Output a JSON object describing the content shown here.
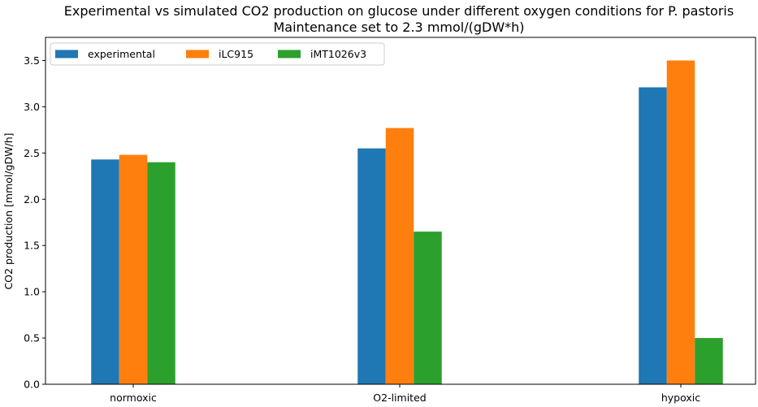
{
  "chart_data": {
    "type": "bar",
    "title": "Experimental vs simulated CO2 production on glucose under different oxygen conditions for P. pastoris",
    "subtitle": "Maintenance set to 2.3 mmol/(gDW*h)",
    "xlabel": "",
    "ylabel": "CO2 production [mmol/gDW/h]",
    "ylim": [
      0,
      3.75
    ],
    "yticks": [
      0.0,
      0.5,
      1.0,
      1.5,
      2.0,
      2.5,
      3.0,
      3.5
    ],
    "ytick_labels": [
      "0.0",
      "0.5",
      "1.0",
      "1.5",
      "2.0",
      "2.5",
      "3.0",
      "3.5"
    ],
    "categories": [
      "normoxic",
      "O2-limited",
      "hypoxic"
    ],
    "grid": false,
    "legend_position": "top-left",
    "series": [
      {
        "name": "experimental",
        "color": "#1f77b4",
        "values": [
          2.43,
          2.55,
          3.21
        ]
      },
      {
        "name": "iLC915",
        "color": "#ff7f0e",
        "values": [
          2.48,
          2.77,
          3.5
        ]
      },
      {
        "name": "iMT1026v3",
        "color": "#2ca02c",
        "values": [
          2.4,
          1.65,
          0.5
        ]
      }
    ]
  }
}
